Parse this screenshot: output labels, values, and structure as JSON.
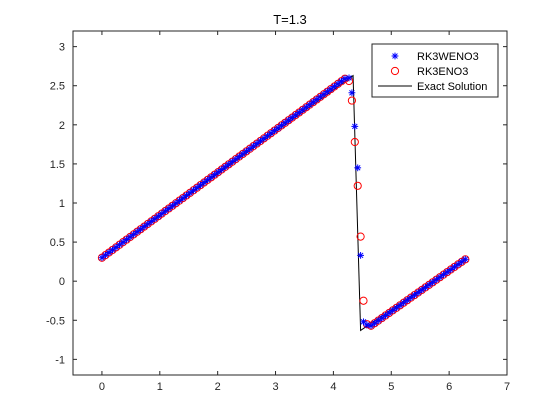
{
  "chart_data": {
    "type": "line",
    "title": "T=1.3",
    "xlabel": "",
    "ylabel": "",
    "xlim": [
      -0.5,
      7
    ],
    "ylim": [
      -1.2,
      3.2
    ],
    "xticks": [
      "0",
      "1",
      "2",
      "3",
      "4",
      "5",
      "6",
      "7"
    ],
    "yticks": [
      "-1",
      "-0.5",
      "0",
      "0.5",
      "1",
      "1.5",
      "2",
      "2.5",
      "3"
    ],
    "grid": false,
    "legend_position": "top-right",
    "series": [
      {
        "name": "RK3WENO3",
        "marker": "asterisk",
        "color": "#0000ff",
        "segments": [
          {
            "x_start": 0.0,
            "x_end": 4.2,
            "y_start": 0.3,
            "y_end": 2.59,
            "count": 70
          },
          {
            "x_start": 4.65,
            "x_end": 6.28,
            "y_start": -0.57,
            "y_end": 0.28,
            "count": 27
          }
        ],
        "extra_points": [
          {
            "x": 4.27,
            "y": 2.6
          },
          {
            "x": 4.32,
            "y": 2.41
          },
          {
            "x": 4.37,
            "y": 1.98
          },
          {
            "x": 4.42,
            "y": 1.45
          },
          {
            "x": 4.47,
            "y": 0.33
          },
          {
            "x": 4.52,
            "y": -0.52
          },
          {
            "x": 4.58,
            "y": -0.56
          }
        ]
      },
      {
        "name": "RK3ENO3",
        "marker": "circle",
        "color": "#ff0000",
        "segments": [
          {
            "x_start": 0.0,
            "x_end": 4.2,
            "y_start": 0.3,
            "y_end": 2.59,
            "count": 70
          },
          {
            "x_start": 4.65,
            "x_end": 6.28,
            "y_start": -0.57,
            "y_end": 0.28,
            "count": 27
          }
        ],
        "extra_points": [
          {
            "x": 4.27,
            "y": 2.56
          },
          {
            "x": 4.32,
            "y": 2.31
          },
          {
            "x": 4.37,
            "y": 1.78
          },
          {
            "x": 4.42,
            "y": 1.22
          },
          {
            "x": 4.47,
            "y": 0.57
          },
          {
            "x": 4.52,
            "y": -0.25
          },
          {
            "x": 4.58,
            "y": -0.55
          }
        ]
      },
      {
        "name": "Exact Solution",
        "marker": "line",
        "color": "#000000",
        "x": [
          0.0,
          4.34,
          4.47,
          6.28
        ],
        "y": [
          0.3,
          2.63,
          -0.63,
          0.28
        ]
      }
    ]
  }
}
